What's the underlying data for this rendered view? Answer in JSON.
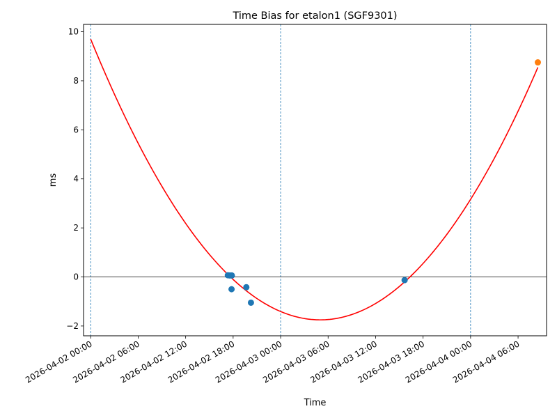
{
  "chart_data": {
    "type": "scatter",
    "title": "Time Bias for etalon1 (SGF9301)",
    "xlabel": "Time",
    "ylabel": "ms",
    "x_ticks": [
      "2026-04-02 00:00",
      "2026-04-02 06:00",
      "2026-04-02 12:00",
      "2026-04-02 18:00",
      "2026-04-03 00:00",
      "2026-04-03 06:00",
      "2026-04-03 12:00",
      "2026-04-03 18:00",
      "2026-04-04 00:00",
      "2026-04-04 06:00"
    ],
    "y_ticks": [
      "−2",
      "0",
      "2",
      "4",
      "6",
      "8",
      "10"
    ],
    "xlim": [
      "2026-04-01 23:06",
      "2026-04-04 09:36"
    ],
    "ylim": [
      -2.4,
      10.3
    ],
    "vertical_lines": [
      "2026-04-02 00:00",
      "2026-04-03 00:00",
      "2026-04-04 00:00"
    ],
    "horizontal_line": 0,
    "fit_curve": {
      "color": "#ff0000",
      "points": [
        {
          "x": "2026-04-02 00:00",
          "y": 9.7
        },
        {
          "x": "2026-04-02 06:00",
          "y": 5.2
        },
        {
          "x": "2026-04-02 12:00",
          "y": 1.9
        },
        {
          "x": "2026-04-02 18:00",
          "y": -0.1
        },
        {
          "x": "2026-04-03 00:00",
          "y": -1.45
        },
        {
          "x": "2026-04-03 05:00",
          "y": -1.75
        },
        {
          "x": "2026-04-03 12:00",
          "y": -1.2
        },
        {
          "x": "2026-04-03 18:00",
          "y": 0.3
        },
        {
          "x": "2026-04-04 00:00",
          "y": 3.25
        },
        {
          "x": "2026-04-04 08:30",
          "y": 8.7
        }
      ]
    },
    "series": [
      {
        "color": "#1f77b4",
        "points": [
          {
            "x": "2026-04-02 17:20",
            "y": 0.07
          },
          {
            "x": "2026-04-02 17:35",
            "y": 0.06
          },
          {
            "x": "2026-04-02 17:50",
            "y": 0.06
          },
          {
            "x": "2026-04-02 17:48",
            "y": -0.5
          },
          {
            "x": "2026-04-02 19:40",
            "y": -0.42
          },
          {
            "x": "2026-04-02 20:15",
            "y": -1.05
          },
          {
            "x": "2026-04-03 15:40",
            "y": -0.13
          }
        ]
      },
      {
        "color": "#ff7f0e",
        "points": [
          {
            "x": "2026-04-04 08:30",
            "y": 8.75
          }
        ]
      }
    ]
  }
}
